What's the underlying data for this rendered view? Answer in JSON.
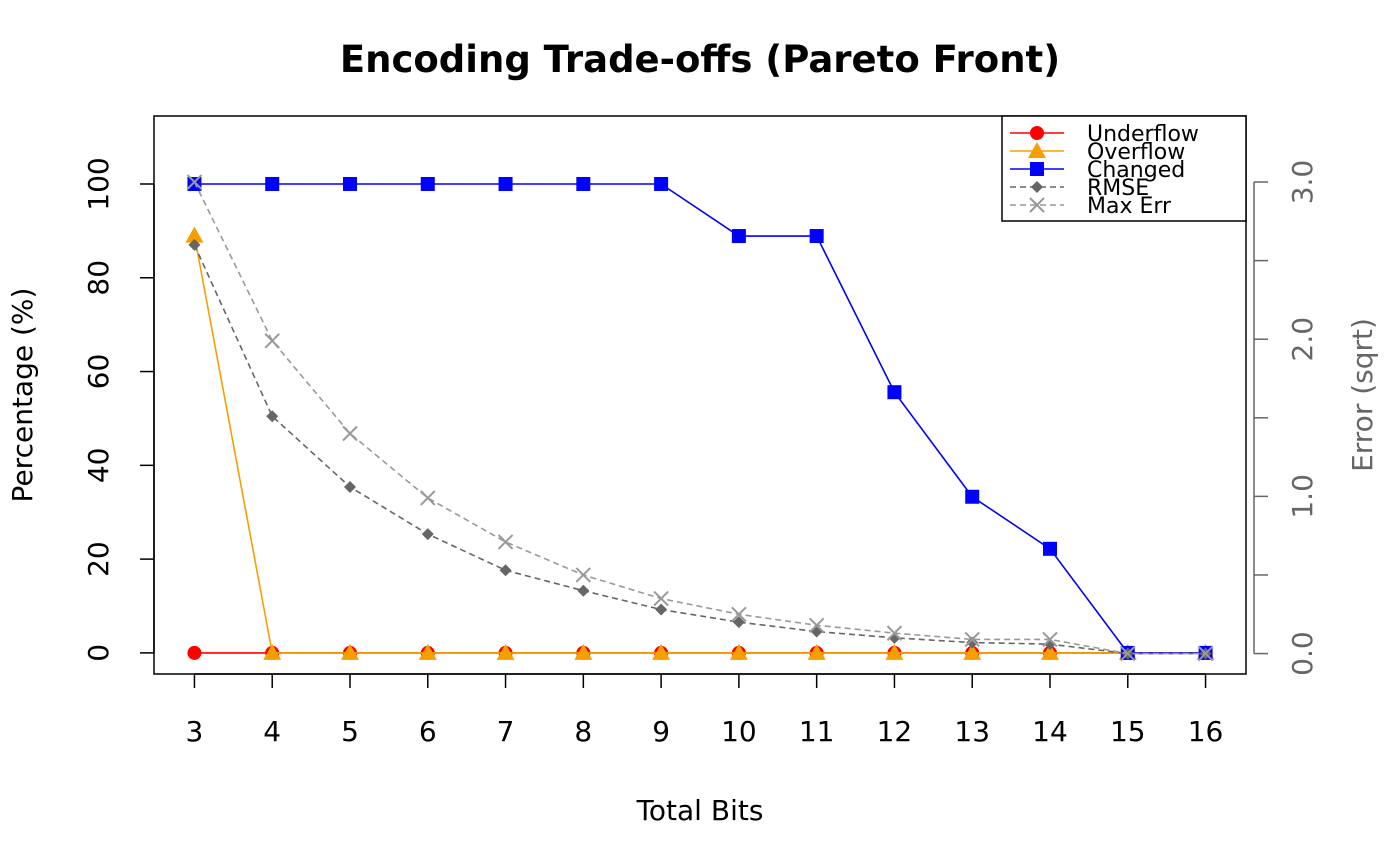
{
  "chart_data": {
    "type": "line",
    "title": "Encoding Trade-offs (Pareto Front)",
    "xlabel": "Total Bits",
    "ylabel": "Percentage (%)",
    "y2label": "Error (sqrt)",
    "x": [
      3,
      4,
      5,
      6,
      7,
      8,
      9,
      10,
      11,
      12,
      13,
      14,
      15,
      16
    ],
    "x_ticks": [
      "3",
      "4",
      "5",
      "6",
      "7",
      "8",
      "9",
      "10",
      "11",
      "12",
      "13",
      "14",
      "15",
      "16"
    ],
    "ylim": [
      -4.5,
      114.5
    ],
    "y_ticks": [
      0,
      20,
      40,
      60,
      80,
      100
    ],
    "y2lim": [
      -0.13,
      3.42
    ],
    "y2_ticks": [
      0,
      0.5,
      1,
      1.5,
      2,
      2.5,
      3
    ],
    "y2_tick_labels": [
      "0.0",
      "",
      "1.0",
      "",
      "2.0",
      "",
      "3.0"
    ],
    "legend_position": "top-right",
    "grid": false,
    "series": [
      {
        "name": "Underflow",
        "axis": "left",
        "color": "#ff0000",
        "marker": "circle",
        "dash": "solid",
        "values": [
          0,
          0,
          0,
          0,
          0,
          0,
          0,
          0,
          0,
          0,
          0,
          0,
          0,
          0
        ]
      },
      {
        "name": "Overflow",
        "axis": "left",
        "color": "#f5a000",
        "marker": "triangle",
        "dash": "solid",
        "values": [
          89,
          0,
          0,
          0,
          0,
          0,
          0,
          0,
          0,
          0,
          0,
          0,
          0,
          0
        ]
      },
      {
        "name": "Changed",
        "axis": "left",
        "color": "#0000ff",
        "marker": "square",
        "dash": "solid",
        "values": [
          100,
          100,
          100,
          100,
          100,
          100,
          100,
          88.9,
          88.9,
          55.6,
          33.3,
          22.2,
          0,
          0
        ]
      },
      {
        "name": "RMSE",
        "axis": "right",
        "color": "#666666",
        "marker": "diamond",
        "dash": "dashed",
        "values": [
          2.6,
          1.51,
          1.06,
          0.76,
          0.53,
          0.4,
          0.28,
          0.2,
          0.14,
          0.1,
          0.07,
          0.06,
          0,
          0
        ]
      },
      {
        "name": "Max Err",
        "axis": "right",
        "color": "#999999",
        "marker": "x",
        "dash": "dashed",
        "values": [
          3.0,
          1.99,
          1.4,
          0.99,
          0.71,
          0.5,
          0.35,
          0.25,
          0.18,
          0.13,
          0.09,
          0.09,
          0,
          0
        ]
      }
    ]
  }
}
